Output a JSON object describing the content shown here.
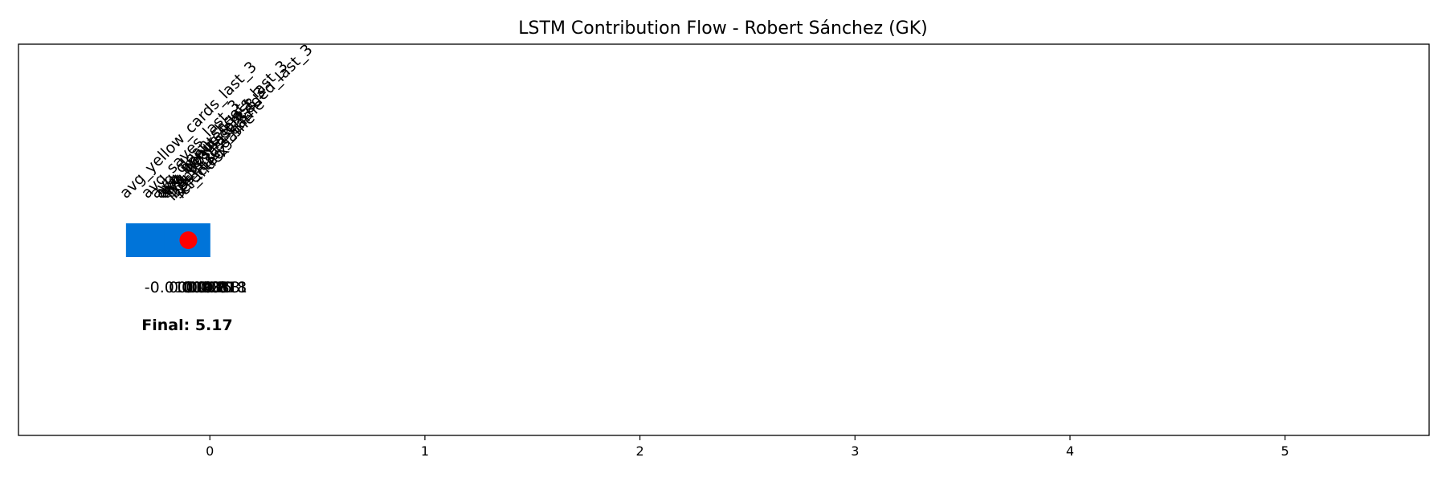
{
  "chart_data": {
    "type": "bar",
    "title": "LSTM Contribution Flow - Robert Sánchez (GK)",
    "xlabel": "",
    "ylabel": "",
    "xlim": [
      -0.89,
      5.67
    ],
    "x_ticks": [
      0,
      1,
      2,
      3,
      4,
      5
    ],
    "x_tick_labels": [
      "0",
      "1",
      "2",
      "3",
      "4",
      "5"
    ],
    "grid": false,
    "features": [
      {
        "label": "avg_yellow_cards_last_3",
        "start": -0.39,
        "value": -0.01,
        "value_label": "-0.010"
      },
      {
        "label": "avg_saves_last_3",
        "start": -0.29,
        "value": 0.014,
        "value_label": "0.014"
      },
      {
        "label": "avg_clean_sheets_last_3",
        "start": -0.25,
        "value": 0.023,
        "value_label": "0.023"
      },
      {
        "label": "avg_minutes_last_3",
        "start": -0.23,
        "value": 0.012,
        "value_label": "0.012"
      },
      {
        "label": "avg_bonus_last_3",
        "start": -0.22,
        "value": 0.018,
        "value_label": "0.018"
      },
      {
        "label": "avg_goals_conceded_last_3",
        "start": -0.21,
        "value": 0.028,
        "value_label": "0.028"
      },
      {
        "label": "avg_bps_last_3",
        "start": -0.2,
        "value": 0.016,
        "value_label": "0.016"
      },
      {
        "label": "points_last_game",
        "start": -0.18,
        "value": 0.021,
        "value_label": "0.021"
      },
      {
        "label": "bps_last_game",
        "start": -0.16,
        "value": 0.013,
        "value_label": "0.013"
      },
      {
        "label": "selected",
        "start": -0.14,
        "value": -0.011,
        "value_label": "-0.011"
      },
      {
        "label": "ict_index",
        "start": -0.13,
        "value": 0.018,
        "value_label": "0.018"
      }
    ],
    "bar_span": [
      -0.39,
      0.0
    ],
    "bar_color": "#0074D9",
    "final_marker": {
      "x": -0.1,
      "color": "#FF0000"
    },
    "final_label": "Final: 5.17"
  }
}
